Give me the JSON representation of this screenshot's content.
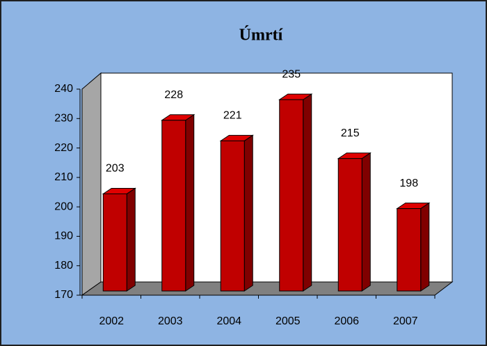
{
  "chart_data": {
    "type": "bar",
    "title": "Úmrtí",
    "categories": [
      "2002",
      "2003",
      "2004",
      "2005",
      "2006",
      "2007"
    ],
    "values": [
      203,
      228,
      221,
      235,
      215,
      198
    ],
    "color": "#c00000",
    "ylim": [
      170,
      240
    ],
    "yticks": [
      170,
      180,
      190,
      200,
      210,
      220,
      230,
      240
    ]
  }
}
